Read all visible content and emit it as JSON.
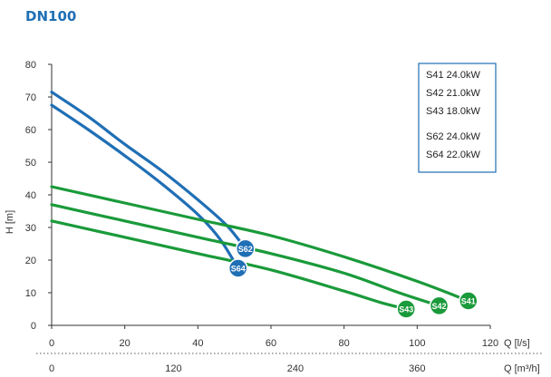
{
  "chart_data": {
    "type": "line",
    "title": "DN100",
    "xlabel": "Q [l/s]",
    "x2label": "Q [m³/h]",
    "ylabel": "H [m]",
    "xlim": [
      0,
      120
    ],
    "ylim": [
      0,
      80
    ],
    "x_ticks": [
      0,
      20,
      40,
      60,
      80,
      100,
      120
    ],
    "y_ticks": [
      0,
      10,
      20,
      30,
      40,
      50,
      60,
      70,
      80
    ],
    "x2_ticks": [
      {
        "label": "0",
        "q_ls": 0
      },
      {
        "label": "120",
        "q_ls": 33.33
      },
      {
        "label": "240",
        "q_ls": 66.67
      },
      {
        "label": "360",
        "q_ls": 100
      }
    ],
    "grid": false,
    "legend_position": "top-right",
    "legend_groups": [
      [
        "S41 24.0kW",
        "S42 21.0kW",
        "S43 18.0kW"
      ],
      [
        "S62 24.0kW",
        "S64 22.0kW"
      ]
    ],
    "series": [
      {
        "name": "S62",
        "color": "#1f6fb5",
        "x": [
          0,
          10,
          20,
          30,
          40,
          48,
          53
        ],
        "y": [
          71.5,
          64.0,
          55.5,
          47.5,
          38.5,
          30.5,
          23.5
        ]
      },
      {
        "name": "S64",
        "color": "#1f6fb5",
        "x": [
          0,
          10,
          20,
          30,
          40,
          46,
          51
        ],
        "y": [
          67.5,
          60.0,
          52.0,
          43.5,
          34.0,
          26.5,
          17.5
        ]
      },
      {
        "name": "S41",
        "color": "#1a9a3a",
        "x": [
          0,
          20,
          40,
          60,
          80,
          100,
          114
        ],
        "y": [
          42.5,
          37.5,
          32.5,
          27.5,
          21.0,
          13.5,
          7.5
        ]
      },
      {
        "name": "S42",
        "color": "#1a9a3a",
        "x": [
          0,
          20,
          40,
          60,
          80,
          95,
          106
        ],
        "y": [
          37.0,
          32.0,
          27.0,
          22.0,
          16.0,
          10.0,
          6.0
        ]
      },
      {
        "name": "S43",
        "color": "#1a9a3a",
        "x": [
          0,
          20,
          40,
          60,
          80,
          90,
          97
        ],
        "y": [
          32.0,
          27.0,
          22.0,
          17.0,
          10.5,
          7.0,
          5.0
        ]
      }
    ],
    "colors": {
      "title": "#1f6fb5",
      "axis": "#333333",
      "s6x": "#1f6fb5",
      "s4x": "#1a9a3a"
    }
  }
}
